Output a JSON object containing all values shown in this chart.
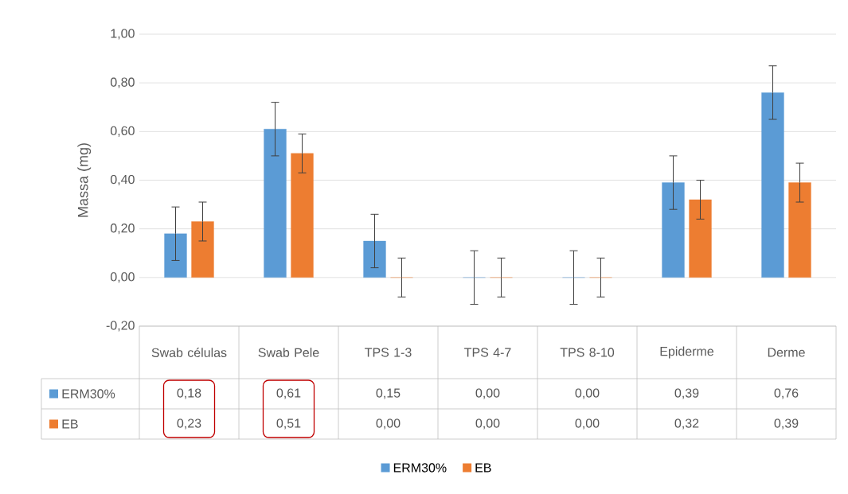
{
  "chart_data": {
    "type": "bar",
    "ylabel": "Massa (mg)",
    "categories": [
      "Swab células",
      "Swab Pele",
      "TPS 1-3",
      "TPS 4-7",
      "TPS 8-10",
      "Epiderme",
      "Derme"
    ],
    "series": [
      {
        "name": "ERM30%",
        "color": "#5b9bd5",
        "values": [
          0.18,
          0.61,
          0.15,
          0.0,
          0.0,
          0.39,
          0.76
        ],
        "errors": [
          0.11,
          0.11,
          0.11,
          0.11,
          0.11,
          0.11,
          0.11
        ],
        "value_labels": [
          "0,18",
          "0,61",
          "0,15",
          "0,00",
          "0,00",
          "0,39",
          "0,76"
        ]
      },
      {
        "name": "EB",
        "color": "#ed7d31",
        "values": [
          0.23,
          0.51,
          0.0,
          0.0,
          0.0,
          0.32,
          0.39
        ],
        "errors": [
          0.08,
          0.08,
          0.08,
          0.08,
          0.08,
          0.08,
          0.08
        ],
        "value_labels": [
          "0,23",
          "0,51",
          "0,00",
          "0,00",
          "0,00",
          "0,32",
          "0,39"
        ]
      }
    ],
    "ylim": [
      -0.2,
      1.0
    ],
    "yticks": [
      {
        "value": -0.2,
        "label": "-0,20"
      },
      {
        "value": 0.0,
        "label": "0,00"
      },
      {
        "value": 0.2,
        "label": "0,20"
      },
      {
        "value": 0.4,
        "label": "0,40"
      },
      {
        "value": 0.6,
        "label": "0,60"
      },
      {
        "value": 0.8,
        "label": "0,80"
      },
      {
        "value": 1.0,
        "label": "1,00"
      }
    ],
    "grid": "y",
    "legend": "bottom"
  }
}
